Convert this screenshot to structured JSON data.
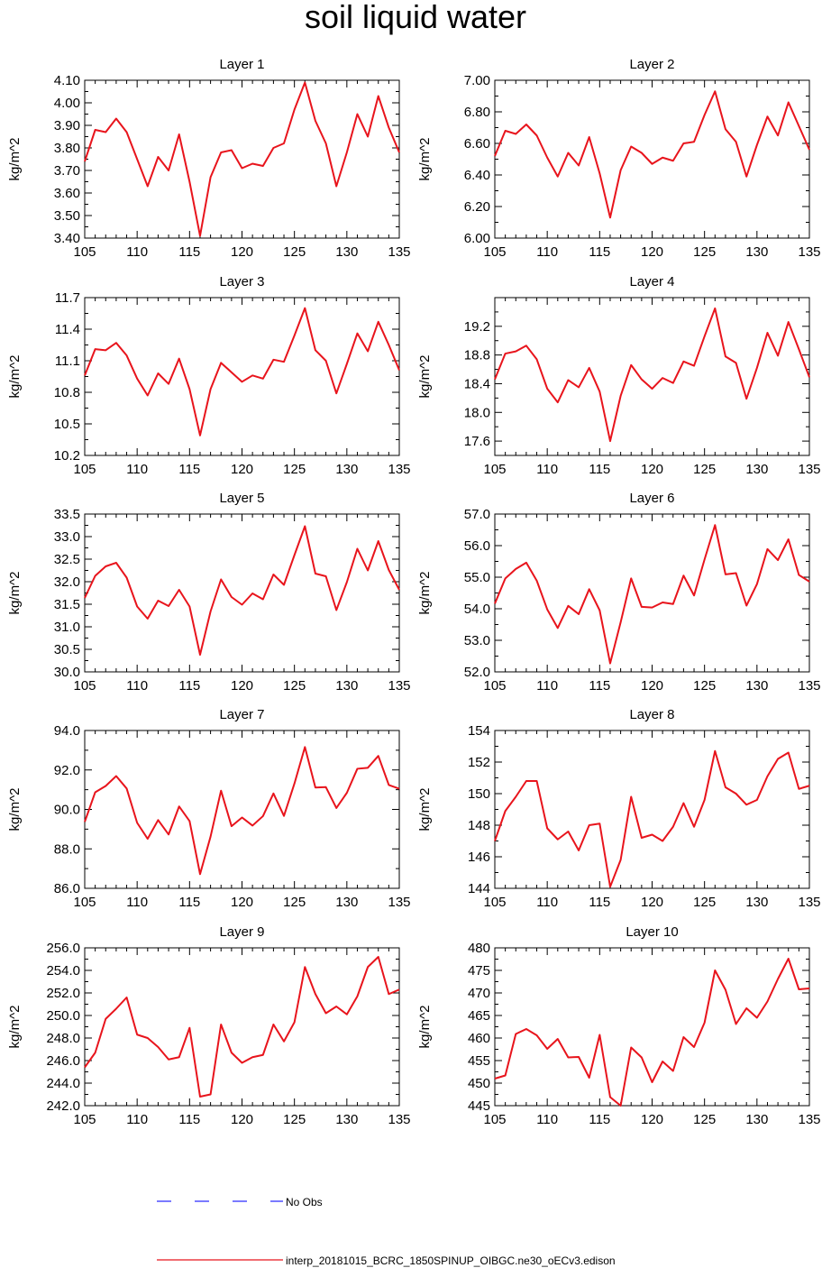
{
  "title": "soil liquid water",
  "colors": {
    "model": "#e8141c",
    "obs": "#2b2bff",
    "axis": "#000000"
  },
  "legend": {
    "obs_label": "No Obs",
    "model_label": "interp_20181015_BCRC_1850SPINUP_OIBGC.ne30_oECv3.edison"
  },
  "chart_data": [
    {
      "type": "line",
      "title": "Layer 1",
      "ylabel": "kg/m^2",
      "xlim": [
        105,
        135
      ],
      "ylim": [
        3.4,
        4.1
      ],
      "xticks": [
        "105",
        "110",
        "115",
        "120",
        "125",
        "130",
        "135"
      ],
      "yticks": [
        "3.40",
        "3.50",
        "3.60",
        "3.70",
        "3.80",
        "3.90",
        "4.00",
        "4.10"
      ],
      "x": [
        105,
        106,
        107,
        108,
        109,
        110,
        111,
        112,
        113,
        114,
        115,
        116,
        117,
        118,
        119,
        120,
        121,
        122,
        123,
        124,
        125,
        126,
        127,
        128,
        129,
        130,
        131,
        132,
        133,
        134,
        135
      ],
      "series": [
        {
          "values": [
            3.74,
            3.88,
            3.87,
            3.93,
            3.87,
            3.75,
            3.63,
            3.76,
            3.7,
            3.86,
            3.65,
            3.41,
            3.67,
            3.78,
            3.79,
            3.71,
            3.73,
            3.72,
            3.8,
            3.82,
            3.97,
            4.09,
            3.92,
            3.82,
            3.63,
            3.78,
            3.95,
            3.85,
            4.03,
            3.89,
            3.78
          ]
        }
      ]
    },
    {
      "type": "line",
      "title": "Layer 2",
      "ylabel": "kg/m^2",
      "xlim": [
        105,
        135
      ],
      "ylim": [
        6.0,
        7.0
      ],
      "xticks": [
        "105",
        "110",
        "115",
        "120",
        "125",
        "130",
        "135"
      ],
      "yticks": [
        "6.00",
        "6.20",
        "6.40",
        "6.60",
        "6.80",
        "7.00"
      ],
      "x": [
        105,
        106,
        107,
        108,
        109,
        110,
        111,
        112,
        113,
        114,
        115,
        116,
        117,
        118,
        119,
        120,
        121,
        122,
        123,
        124,
        125,
        126,
        127,
        128,
        129,
        130,
        131,
        132,
        133,
        134,
        135
      ],
      "series": [
        {
          "values": [
            6.52,
            6.68,
            6.66,
            6.72,
            6.65,
            6.51,
            6.39,
            6.54,
            6.46,
            6.64,
            6.41,
            6.13,
            6.43,
            6.58,
            6.54,
            6.47,
            6.51,
            6.49,
            6.6,
            6.61,
            6.78,
            6.93,
            6.69,
            6.61,
            6.39,
            6.59,
            6.77,
            6.65,
            6.86,
            6.71,
            6.56
          ]
        }
      ]
    },
    {
      "type": "line",
      "title": "Layer 3",
      "ylabel": "kg/m^2",
      "xlim": [
        105,
        135
      ],
      "ylim": [
        10.2,
        11.7
      ],
      "xticks": [
        "105",
        "110",
        "115",
        "120",
        "125",
        "130",
        "135"
      ],
      "yticks": [
        "10.2",
        "10.5",
        "10.8",
        "11.1",
        "11.4",
        "11.7"
      ],
      "x": [
        105,
        106,
        107,
        108,
        109,
        110,
        111,
        112,
        113,
        114,
        115,
        116,
        117,
        118,
        119,
        120,
        121,
        122,
        123,
        124,
        125,
        126,
        127,
        128,
        129,
        130,
        131,
        132,
        133,
        134,
        135
      ],
      "series": [
        {
          "values": [
            10.96,
            11.21,
            11.2,
            11.27,
            11.15,
            10.93,
            10.77,
            10.98,
            10.88,
            11.12,
            10.83,
            10.39,
            10.83,
            11.08,
            10.99,
            10.9,
            10.96,
            10.93,
            11.11,
            11.09,
            11.34,
            11.6,
            11.2,
            11.1,
            10.79,
            11.07,
            11.36,
            11.19,
            11.47,
            11.25,
            11.01
          ]
        }
      ]
    },
    {
      "type": "line",
      "title": "Layer 4",
      "ylabel": "kg/m^2",
      "xlim": [
        105,
        135
      ],
      "ylim": [
        17.4,
        19.6
      ],
      "xticks": [
        "105",
        "110",
        "115",
        "120",
        "125",
        "130",
        "135"
      ],
      "yticks": [
        "17.6",
        "18.0",
        "18.4",
        "18.8",
        "19.2"
      ],
      "x": [
        105,
        106,
        107,
        108,
        109,
        110,
        111,
        112,
        113,
        114,
        115,
        116,
        117,
        118,
        119,
        120,
        121,
        122,
        123,
        124,
        125,
        126,
        127,
        128,
        129,
        130,
        131,
        132,
        133,
        134,
        135
      ],
      "series": [
        {
          "values": [
            18.46,
            18.82,
            18.85,
            18.93,
            18.74,
            18.33,
            18.14,
            18.45,
            18.35,
            18.62,
            18.29,
            17.6,
            18.23,
            18.66,
            18.46,
            18.33,
            18.48,
            18.41,
            18.71,
            18.65,
            19.06,
            19.45,
            18.78,
            18.69,
            18.19,
            18.62,
            19.11,
            18.79,
            19.26,
            18.88,
            18.49
          ]
        }
      ]
    },
    {
      "type": "line",
      "title": "Layer 5",
      "ylabel": "kg/m^2",
      "xlim": [
        105,
        135
      ],
      "ylim": [
        30.0,
        33.5
      ],
      "xticks": [
        "105",
        "110",
        "115",
        "120",
        "125",
        "130",
        "135"
      ],
      "yticks": [
        "30.0",
        "30.5",
        "31.0",
        "31.5",
        "32.0",
        "32.5",
        "33.0",
        "33.5"
      ],
      "x": [
        105,
        106,
        107,
        108,
        109,
        110,
        111,
        112,
        113,
        114,
        115,
        116,
        117,
        118,
        119,
        120,
        121,
        122,
        123,
        124,
        125,
        126,
        127,
        128,
        129,
        130,
        131,
        132,
        133,
        134,
        135
      ],
      "series": [
        {
          "values": [
            31.64,
            32.13,
            32.34,
            32.42,
            32.09,
            31.45,
            31.18,
            31.58,
            31.46,
            31.82,
            31.45,
            30.38,
            31.34,
            32.05,
            31.66,
            31.49,
            31.74,
            31.61,
            32.16,
            31.93,
            32.59,
            33.23,
            32.18,
            32.12,
            31.37,
            31.99,
            32.73,
            32.25,
            32.9,
            32.26,
            31.82
          ]
        }
      ]
    },
    {
      "type": "line",
      "title": "Layer 6",
      "ylabel": "kg/m^2",
      "xlim": [
        105,
        135
      ],
      "ylim": [
        52.0,
        57.0
      ],
      "xticks": [
        "105",
        "110",
        "115",
        "120",
        "125",
        "130",
        "135"
      ],
      "yticks": [
        "52.0",
        "53.0",
        "54.0",
        "55.0",
        "56.0",
        "57.0"
      ],
      "x": [
        105,
        106,
        107,
        108,
        109,
        110,
        111,
        112,
        113,
        114,
        115,
        116,
        117,
        118,
        119,
        120,
        121,
        122,
        123,
        124,
        125,
        126,
        127,
        128,
        129,
        130,
        131,
        132,
        133,
        134,
        135
      ],
      "series": [
        {
          "values": [
            54.16,
            54.96,
            55.26,
            55.46,
            54.89,
            53.98,
            53.39,
            54.09,
            53.83,
            54.62,
            53.95,
            52.27,
            53.57,
            54.96,
            54.06,
            54.04,
            54.2,
            54.15,
            55.05,
            54.42,
            55.56,
            56.65,
            55.09,
            55.13,
            54.1,
            54.78,
            55.89,
            55.54,
            56.2,
            55.07,
            54.86
          ]
        }
      ]
    },
    {
      "type": "line",
      "title": "Layer 7",
      "ylabel": "kg/m^2",
      "xlim": [
        105,
        135
      ],
      "ylim": [
        86.0,
        94.0
      ],
      "xticks": [
        "105",
        "110",
        "115",
        "120",
        "125",
        "130",
        "135"
      ],
      "yticks": [
        "86.0",
        "88.0",
        "90.0",
        "92.0",
        "94.0"
      ],
      "x": [
        105,
        106,
        107,
        108,
        109,
        110,
        111,
        112,
        113,
        114,
        115,
        116,
        117,
        118,
        119,
        120,
        121,
        122,
        123,
        124,
        125,
        126,
        127,
        128,
        129,
        130,
        131,
        132,
        133,
        134,
        135
      ],
      "series": [
        {
          "values": [
            89.37,
            90.87,
            91.19,
            91.69,
            91.06,
            89.32,
            88.51,
            89.46,
            88.73,
            90.15,
            89.41,
            86.72,
            88.62,
            90.95,
            89.15,
            89.59,
            89.18,
            89.66,
            90.81,
            89.67,
            91.31,
            93.16,
            91.11,
            91.13,
            90.07,
            90.84,
            92.06,
            92.11,
            92.71,
            91.24,
            91.05
          ]
        }
      ]
    },
    {
      "type": "line",
      "title": "Layer 8",
      "ylabel": "kg/m^2",
      "xlim": [
        105,
        135
      ],
      "ylim": [
        144,
        154
      ],
      "xticks": [
        "105",
        "110",
        "115",
        "120",
        "125",
        "130",
        "135"
      ],
      "yticks": [
        "144",
        "146",
        "148",
        "150",
        "152",
        "154"
      ],
      "x": [
        105,
        106,
        107,
        108,
        109,
        110,
        111,
        112,
        113,
        114,
        115,
        116,
        117,
        118,
        119,
        120,
        121,
        122,
        123,
        124,
        125,
        126,
        127,
        128,
        129,
        130,
        131,
        132,
        133,
        134,
        135
      ],
      "series": [
        {
          "values": [
            147.0,
            148.9,
            149.8,
            150.8,
            150.8,
            147.8,
            147.1,
            147.6,
            146.4,
            148.0,
            148.1,
            144.1,
            145.8,
            149.8,
            147.2,
            147.4,
            147.0,
            147.9,
            149.4,
            147.9,
            149.6,
            152.7,
            150.4,
            150.0,
            149.3,
            149.6,
            151.1,
            152.2,
            152.6,
            150.3,
            150.5
          ]
        }
      ]
    },
    {
      "type": "line",
      "title": "Layer 9",
      "ylabel": "kg/m^2",
      "xlim": [
        105,
        135
      ],
      "ylim": [
        242.0,
        256.0
      ],
      "xticks": [
        "105",
        "110",
        "115",
        "120",
        "125",
        "130",
        "135"
      ],
      "yticks": [
        "242.0",
        "244.0",
        "246.0",
        "248.0",
        "250.0",
        "252.0",
        "254.0",
        "256.0"
      ],
      "x": [
        105,
        106,
        107,
        108,
        109,
        110,
        111,
        112,
        113,
        114,
        115,
        116,
        117,
        118,
        119,
        120,
        121,
        122,
        123,
        124,
        125,
        126,
        127,
        128,
        129,
        130,
        131,
        132,
        133,
        134,
        135
      ],
      "series": [
        {
          "values": [
            245.4,
            246.7,
            249.7,
            250.6,
            251.6,
            248.3,
            248.0,
            247.2,
            246.1,
            246.3,
            248.9,
            242.8,
            243.0,
            249.2,
            246.7,
            245.8,
            246.3,
            246.5,
            249.2,
            247.7,
            249.4,
            254.3,
            251.9,
            250.2,
            250.8,
            250.1,
            251.7,
            254.3,
            255.2,
            251.9,
            252.3
          ]
        }
      ]
    },
    {
      "type": "line",
      "title": "Layer 10",
      "ylabel": "kg/m^2",
      "xlim": [
        105,
        135
      ],
      "ylim": [
        445,
        480
      ],
      "xticks": [
        "105",
        "110",
        "115",
        "120",
        "125",
        "130",
        "135"
      ],
      "yticks": [
        "445",
        "450",
        "455",
        "460",
        "465",
        "470",
        "475",
        "480"
      ],
      "x": [
        105,
        106,
        107,
        108,
        109,
        110,
        111,
        112,
        113,
        114,
        115,
        116,
        117,
        118,
        119,
        120,
        121,
        122,
        123,
        124,
        125,
        126,
        127,
        128,
        129,
        130,
        131,
        132,
        133,
        134,
        135
      ],
      "series": [
        {
          "values": [
            451.0,
            451.7,
            460.9,
            462.0,
            460.6,
            457.6,
            459.8,
            455.7,
            455.8,
            451.2,
            460.7,
            446.9,
            445.0,
            457.9,
            455.7,
            450.2,
            454.8,
            452.7,
            460.2,
            458.0,
            463.4,
            475.0,
            470.7,
            463.1,
            466.6,
            464.5,
            468.1,
            473.1,
            477.6,
            470.8,
            471.0
          ]
        }
      ]
    }
  ]
}
